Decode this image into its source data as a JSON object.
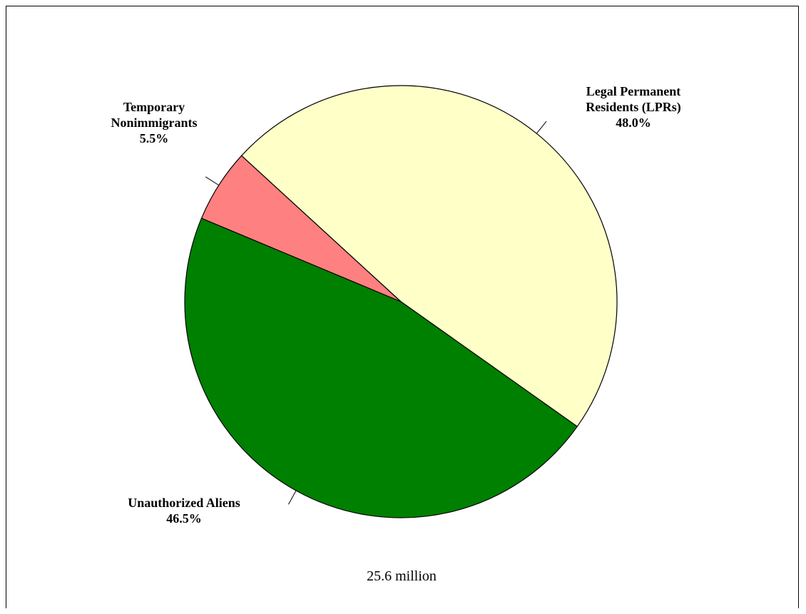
{
  "chart_data": {
    "type": "pie",
    "slices": [
      {
        "label_lines": [
          "Legal Permanent",
          "Residents (LPRs)"
        ],
        "value_label": "48.0%",
        "value": 48.0,
        "color": "#ffffc8"
      },
      {
        "label_lines": [
          "Unauthorized Aliens"
        ],
        "value_label": "46.5%",
        "value": 46.5,
        "color": "#008000"
      },
      {
        "label_lines": [
          "Temporary",
          "Nonimmigrants"
        ],
        "value_label": "5.5%",
        "value": 5.5,
        "color": "#ff8080"
      }
    ],
    "total_label": "25.6 million"
  }
}
